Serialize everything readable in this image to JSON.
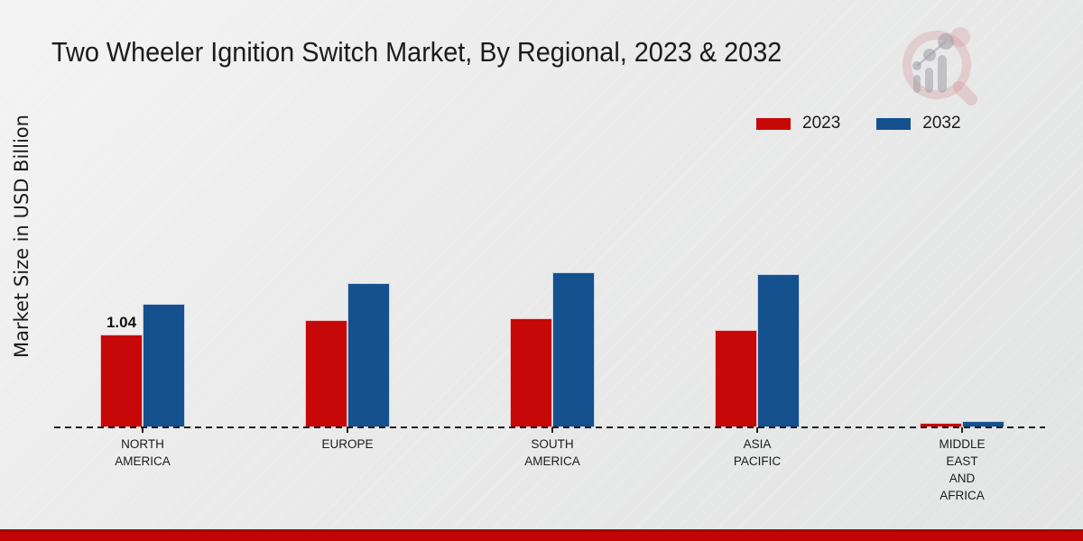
{
  "page": {
    "background_top": "#f4f4f4",
    "background_bottom": "#e3e4e4",
    "footer_bar_color": "#c10505",
    "footer_bar_edge_color": "#970b0b"
  },
  "logo": {
    "name": "bar-chart-magnifier-watermark",
    "ring_color": "#cd828c",
    "glyph_color": "#9b9ba0"
  },
  "chart_data": {
    "type": "bar",
    "title": "Two Wheeler Ignition Switch Market, By Regional, 2023 & 2032",
    "ylabel": "Market Size in USD Billion",
    "xlabel": "",
    "categories": [
      "NORTH AMERICA",
      "EUROPE",
      "SOUTH AMERICA",
      "ASIA PACIFIC",
      "MIDDLE EAST AND AFRICA"
    ],
    "series": [
      {
        "name": "2023",
        "color": "#c70808",
        "values": [
          1.04,
          1.2,
          1.22,
          1.09,
          0.05
        ]
      },
      {
        "name": "2032",
        "color": "#15508f",
        "values": [
          1.38,
          1.62,
          1.74,
          1.72,
          0.07
        ]
      }
    ],
    "bar_value_labels": [
      {
        "category_index": 0,
        "series_index": 0,
        "text": "1.04"
      }
    ],
    "legend_position": "top-right",
    "grid": false,
    "zero_line": "dashed",
    "ylim": [
      0,
      2
    ]
  }
}
